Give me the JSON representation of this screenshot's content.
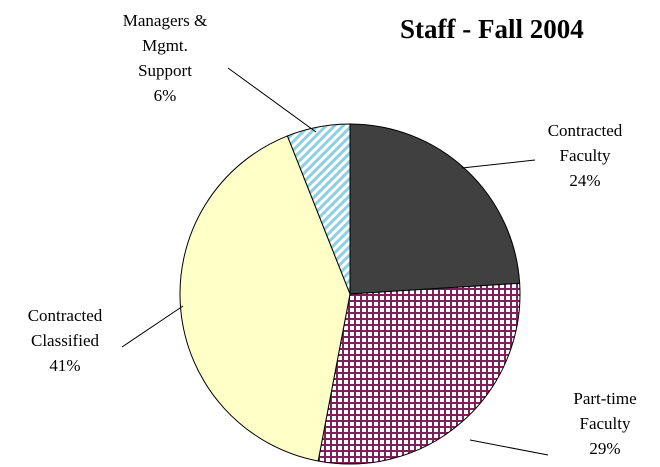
{
  "chart_data": {
    "type": "pie",
    "title": "Staff - Fall 2004",
    "categories": [
      "Contracted\nFaculty",
      "Part-time\nFaculty",
      "Contracted\nClassified",
      "Managers &\nMgmt.\nSupport"
    ],
    "values": [
      24,
      29,
      41,
      6
    ],
    "value_labels": [
      "24%",
      "29%",
      "41%",
      "6%"
    ],
    "colors": [
      "#404040",
      "#80205a",
      "#ffffc8",
      "#8fd0e0"
    ],
    "patterns": [
      "solid",
      "grid",
      "solid",
      "diagonal"
    ]
  }
}
